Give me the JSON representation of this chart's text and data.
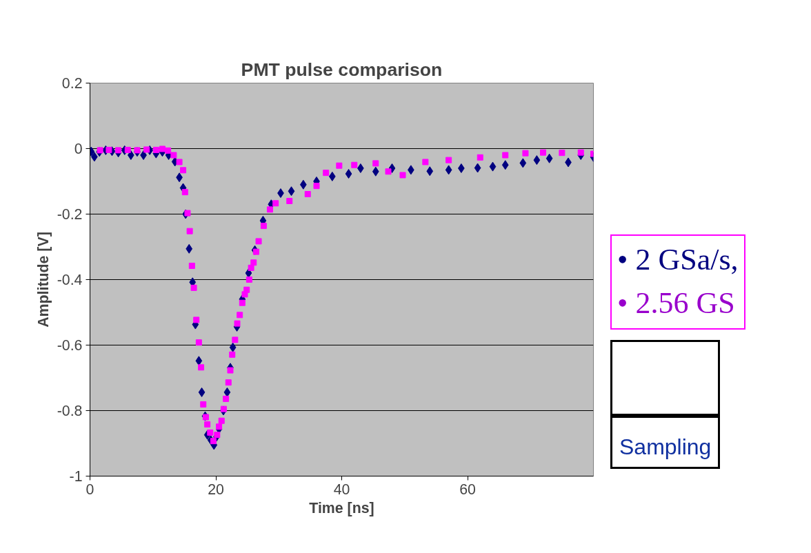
{
  "chart_data": {
    "type": "scatter",
    "title": "PMT pulse comparison",
    "xlabel": "Time [ns]",
    "ylabel": "Amplitude [V]",
    "xlim": [
      0,
      80
    ],
    "ylim": [
      -1,
      0.2
    ],
    "xticks": [
      0,
      20,
      40,
      60
    ],
    "yticks": [
      -1,
      -0.8,
      -0.6,
      -0.4,
      -0.2,
      0,
      0.2
    ],
    "grid": "y",
    "series": [
      {
        "color": "#000080",
        "marker": "diamond",
        "x": [
          0.2,
          0.7,
          1.5,
          2.5,
          3.5,
          4.5,
          5.5,
          6.5,
          7.5,
          8.5,
          9.5,
          10.5,
          11.5,
          12.5,
          13.5,
          14.2,
          14.8,
          15.2,
          15.75,
          16.3,
          16.75,
          17.3,
          17.76,
          18.3,
          18.65,
          19.2,
          19.7,
          20.1,
          20.5,
          21.2,
          21.8,
          22.3,
          22.7,
          23.35,
          24.2,
          25.2,
          26.2,
          27.5,
          28.8,
          30.3,
          32,
          33.9,
          36,
          38.5,
          41.1,
          43,
          45.4,
          48,
          51,
          54,
          57,
          59,
          61.6,
          64,
          66,
          68.8,
          71,
          73,
          76,
          78,
          80
        ],
        "values": [
          -0.009,
          -0.025,
          -0.01,
          -0.005,
          -0.008,
          -0.012,
          -0.005,
          -0.02,
          -0.01,
          -0.02,
          -0.005,
          -0.015,
          -0.01,
          -0.02,
          -0.04,
          -0.088,
          -0.12,
          -0.2,
          -0.306,
          -0.408,
          -0.537,
          -0.648,
          -0.744,
          -0.817,
          -0.874,
          -0.89,
          -0.905,
          -0.88,
          -0.856,
          -0.8,
          -0.744,
          -0.669,
          -0.607,
          -0.544,
          -0.46,
          -0.38,
          -0.31,
          -0.22,
          -0.17,
          -0.136,
          -0.13,
          -0.11,
          -0.1,
          -0.085,
          -0.077,
          -0.06,
          -0.07,
          -0.06,
          -0.065,
          -0.069,
          -0.065,
          -0.06,
          -0.059,
          -0.055,
          -0.05,
          -0.044,
          -0.035,
          -0.03,
          -0.042,
          -0.02,
          -0.026
        ]
      },
      {
        "color": "#ff00ff",
        "marker": "square",
        "x": [
          1.6,
          3,
          4.5,
          6,
          7.5,
          9,
          10.5,
          11.5,
          12.4,
          13.3,
          14.2,
          14.8,
          15.1,
          15.5,
          15.85,
          16.2,
          16.5,
          16.9,
          17.3,
          17.65,
          18,
          18.4,
          18.65,
          19.1,
          19.6,
          20.2,
          20.5,
          20.9,
          21.25,
          21.6,
          22,
          22.3,
          22.6,
          23.05,
          23.4,
          23.8,
          24.2,
          24.6,
          24.9,
          25.3,
          25.6,
          26,
          26.4,
          26.8,
          27.6,
          28.6,
          29.5,
          31.7,
          34.6,
          36,
          37.5,
          39.6,
          42,
          45.4,
          47.4,
          49.7,
          53.3,
          57,
          62,
          66,
          69.2,
          72,
          75,
          78,
          80
        ],
        "values": [
          -0.005,
          -0.004,
          -0.005,
          -0.004,
          -0.005,
          -0.003,
          -0.004,
          -0.001,
          -0.006,
          -0.02,
          -0.041,
          -0.066,
          -0.133,
          -0.197,
          -0.252,
          -0.358,
          -0.425,
          -0.523,
          -0.592,
          -0.668,
          -0.781,
          -0.82,
          -0.842,
          -0.867,
          -0.893,
          -0.874,
          -0.849,
          -0.831,
          -0.795,
          -0.764,
          -0.714,
          -0.677,
          -0.629,
          -0.584,
          -0.534,
          -0.508,
          -0.471,
          -0.445,
          -0.431,
          -0.4,
          -0.364,
          -0.348,
          -0.315,
          -0.283,
          -0.236,
          -0.186,
          -0.167,
          -0.16,
          -0.139,
          -0.114,
          -0.074,
          -0.052,
          -0.05,
          -0.045,
          -0.07,
          -0.081,
          -0.041,
          -0.035,
          -0.027,
          -0.02,
          -0.014,
          -0.012,
          -0.013,
          -0.012,
          -0.016
        ]
      }
    ],
    "annotations": [
      "• 2 GSa/s,",
      "• 2.56 GS",
      "Sampling"
    ]
  }
}
